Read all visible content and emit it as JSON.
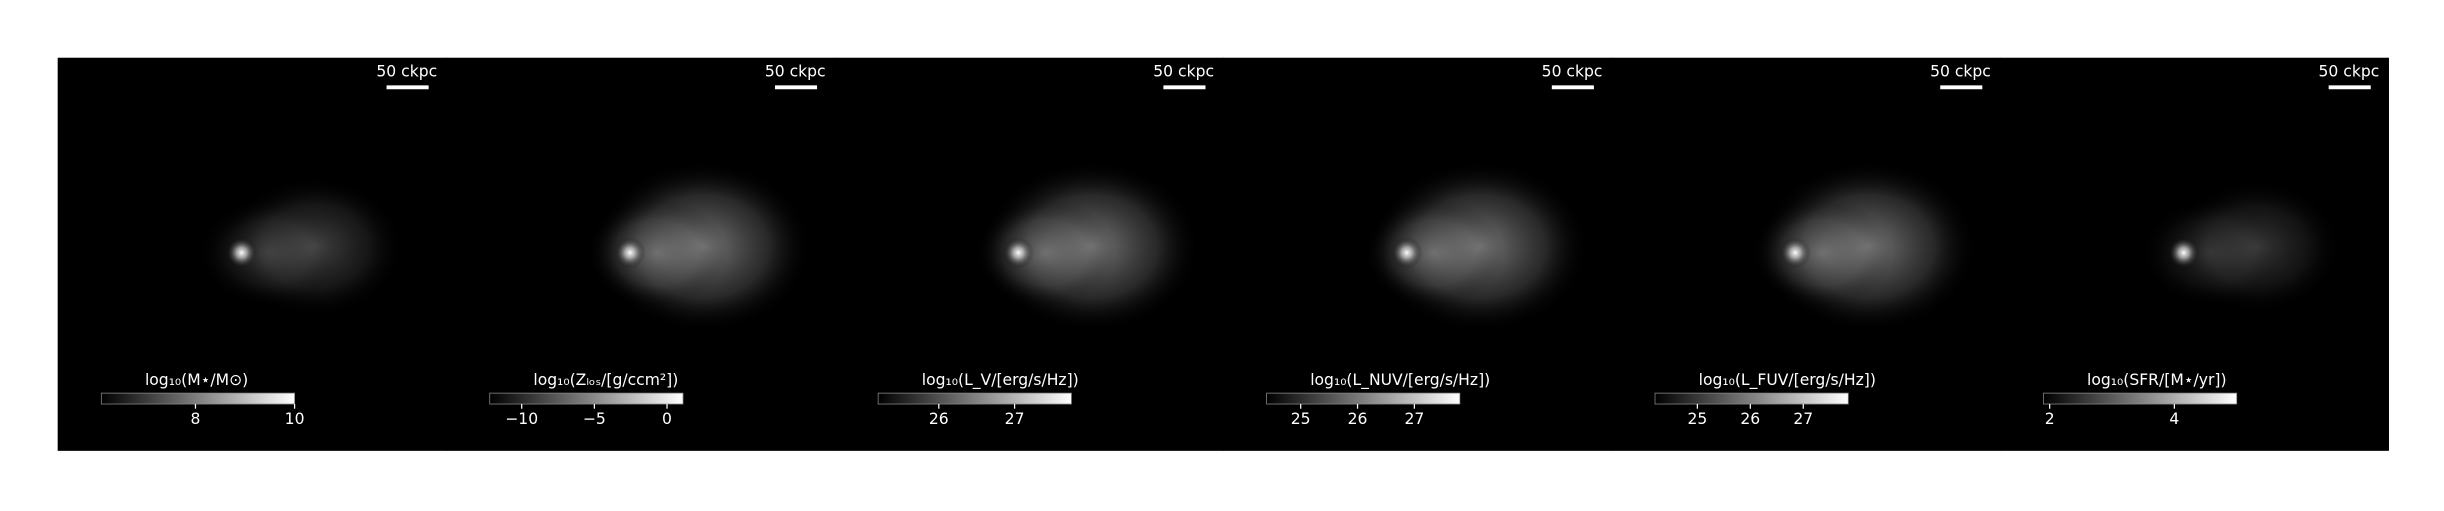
{
  "panels": [
    {
      "scale_label": "50 ckpc",
      "colorbar": {
        "label": "log₁₀(M⋆/M⊙)",
        "lim": [
          6.1,
          10
        ],
        "ticks": [
          8,
          10
        ]
      }
    },
    {
      "scale_label": "50 ckpc",
      "colorbar": {
        "label": "log₁₀(Zₗₒₛ/[g/ccm²])",
        "lim": [
          -12.2,
          1.1
        ],
        "ticks": [
          {
            "value": -10,
            "label": "−10"
          },
          {
            "value": -5,
            "label": "−5"
          },
          0
        ]
      }
    },
    {
      "scale_label": "50 ckpc",
      "colorbar": {
        "label": "log₁₀(L_V/[erg/s/Hz])",
        "lim": [
          25.2,
          27.75
        ],
        "ticks": [
          26,
          27
        ]
      }
    },
    {
      "scale_label": "50 ckpc",
      "colorbar": {
        "label": "log₁₀(L_NUV/[erg/s/Hz])",
        "lim": [
          24.4,
          27.8
        ],
        "ticks": [
          25,
          26,
          27
        ]
      }
    },
    {
      "scale_label": "50 ckpc",
      "colorbar": {
        "label": "log₁₀(L_FUV/[erg/s/Hz])",
        "lim": [
          24.2,
          27.85
        ],
        "ticks": [
          25,
          26,
          27
        ]
      }
    },
    {
      "scale_label": "50 ckpc",
      "colorbar": {
        "label": "log₁₀(SFR/[M⋆/yr])",
        "lim": [
          1.9,
          5.0
        ],
        "ticks": [
          2,
          4
        ]
      }
    }
  ]
}
